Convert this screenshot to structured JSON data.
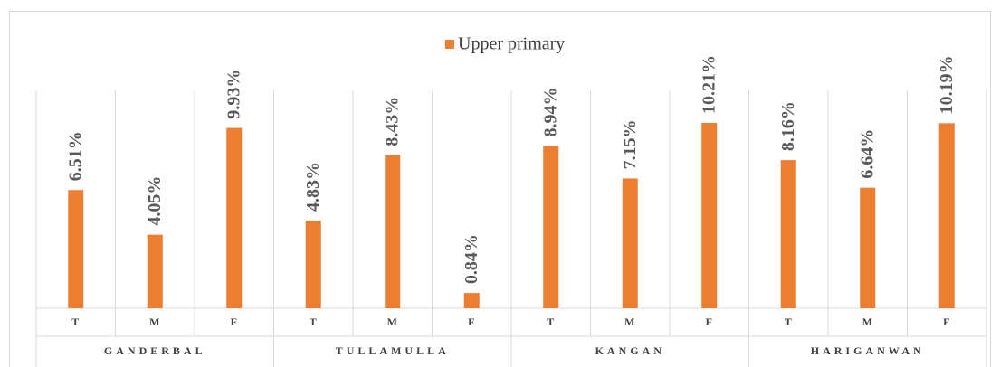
{
  "chart_data": {
    "type": "bar",
    "groups": [
      "GANDERBAL",
      "TULLAMULLA",
      "KANGAN",
      "HARIGANWAN"
    ],
    "categories": [
      "T",
      "M",
      "F",
      "T",
      "M",
      "F",
      "T",
      "M",
      "F",
      "T",
      "M",
      "F"
    ],
    "series": [
      {
        "name": "Upper primary",
        "color": "#ed7d31",
        "values": [
          6.51,
          4.05,
          9.93,
          4.83,
          8.43,
          0.84,
          8.94,
          7.15,
          10.21,
          8.16,
          6.64,
          10.19
        ],
        "value_labels": [
          "6.51%",
          "4.05%",
          "9.93%",
          "4.83%",
          "8.43%",
          "0.84%",
          "8.94%",
          "7.15%",
          "10.21%",
          "8.16%",
          "6.64%",
          "10.19%"
        ]
      }
    ],
    "ylim": [
      0,
      12
    ],
    "legend": "top"
  }
}
